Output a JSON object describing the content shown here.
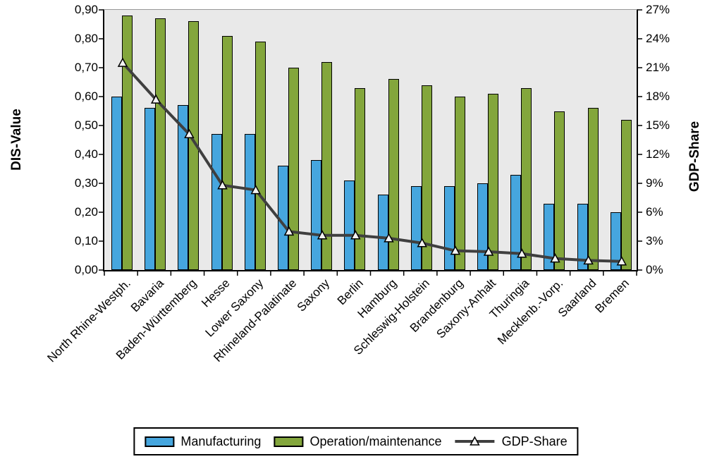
{
  "chart_data": {
    "type": "bar+line combo",
    "title": "",
    "categories": [
      "North Rhine-Westph.",
      "Bavaria",
      "Baden-Württemberg",
      "Hesse",
      "Lower Saxony",
      "Rhineland-Palatinate",
      "Saxony",
      "Berlin",
      "Hamburg",
      "Schleswig-Holstein",
      "Brandenburg",
      "Saxony-Anhalt",
      "Thuringia",
      "Mecklenb.-Vorp.",
      "Saarland",
      "Bremen"
    ],
    "series": [
      {
        "name": "Manufacturing",
        "type": "bar",
        "axis": "left",
        "color": "#46A6DE",
        "values": [
          0.6,
          0.56,
          0.57,
          0.47,
          0.47,
          0.36,
          0.38,
          0.31,
          0.26,
          0.29,
          0.29,
          0.3,
          0.33,
          0.23,
          0.23,
          0.2
        ]
      },
      {
        "name": "Operation/maintenance",
        "type": "bar",
        "axis": "left",
        "color": "#83A63C",
        "values": [
          0.88,
          0.87,
          0.86,
          0.81,
          0.79,
          0.7,
          0.72,
          0.63,
          0.66,
          0.64,
          0.6,
          0.61,
          0.63,
          0.55,
          0.56,
          0.52
        ]
      },
      {
        "name": "GDP-Share",
        "type": "line",
        "axis": "right",
        "color": "#3F3F3F",
        "marker": "triangle-up",
        "marker_fill": "#F2F2F2",
        "values_percent": [
          21.5,
          17.7,
          14.1,
          8.8,
          8.3,
          4.0,
          3.6,
          3.6,
          3.3,
          2.8,
          2.0,
          1.9,
          1.7,
          1.2,
          1.0,
          0.9
        ]
      }
    ],
    "left_axis": {
      "title": "DIS-Value",
      "min": 0.0,
      "max": 0.9,
      "step": 0.1,
      "tick_labels": [
        "0,00",
        "0,10",
        "0,20",
        "0,30",
        "0,40",
        "0,50",
        "0,60",
        "0,70",
        "0,80",
        "0,90"
      ]
    },
    "right_axis": {
      "title": "GDP-Share",
      "min": 0,
      "max": 27,
      "step": 3,
      "tick_labels": [
        "0%",
        "3%",
        "6%",
        "9%",
        "12%",
        "15%",
        "18%",
        "21%",
        "24%",
        "27%"
      ]
    },
    "legend": {
      "position": "bottom",
      "entries": [
        "Manufacturing",
        "Operation/maintenance",
        "GDP-Share"
      ]
    },
    "plot_background": "#E9E9E9",
    "grid": false,
    "category_label_rotation_deg": 45
  }
}
